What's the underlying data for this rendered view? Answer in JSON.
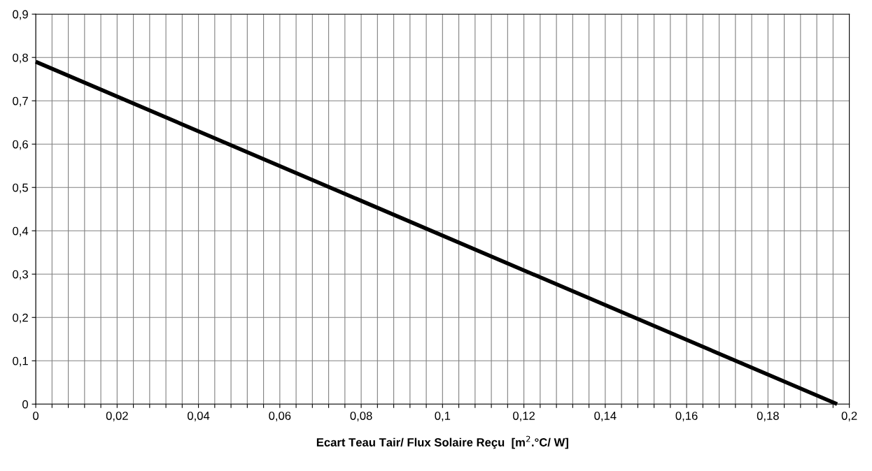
{
  "chart_data": {
    "type": "line",
    "xlabel": "Ecart Teau Tair/ Flux Solaire Reçu  [m$^{2}$.°C/ W]",
    "series": [
      {
        "color": "#000000",
        "x": [
          0,
          0.197
        ],
        "values": [
          0.79,
          0
        ]
      }
    ],
    "xlim": [
      0,
      0.2
    ],
    "ylim": [
      0,
      0.9
    ],
    "xticks": [
      0,
      {
        "value": 0.004,
        "label": null
      },
      {
        "value": 0.008,
        "label": null
      },
      {
        "value": 0.012,
        "label": null
      },
      {
        "value": 0.016,
        "label": null
      },
      {
        "value": 0.02,
        "label": "0,02"
      },
      {
        "value": 0.024,
        "label": null
      },
      {
        "value": 0.028,
        "label": null
      },
      {
        "value": 0.032,
        "label": null
      },
      {
        "value": 0.036,
        "label": null
      },
      {
        "value": 0.04,
        "label": "0,04"
      },
      {
        "value": 0.044,
        "label": null
      },
      {
        "value": 0.048,
        "label": null
      },
      {
        "value": 0.052,
        "label": null
      },
      {
        "value": 0.056,
        "label": null
      },
      {
        "value": 0.06,
        "label": "0,06"
      },
      {
        "value": 0.064,
        "label": null
      },
      {
        "value": 0.068,
        "label": null
      },
      {
        "value": 0.072,
        "label": null
      },
      {
        "value": 0.076,
        "label": null
      },
      {
        "value": 0.08,
        "label": "0,08"
      },
      {
        "value": 0.084,
        "label": null
      },
      {
        "value": 0.088,
        "label": null
      },
      {
        "value": 0.092,
        "label": null
      },
      {
        "value": 0.096,
        "label": null
      },
      {
        "value": 0.1,
        "label": "0,1"
      },
      {
        "value": 0.104,
        "label": null
      },
      {
        "value": 0.108,
        "label": null
      },
      {
        "value": 0.112,
        "label": null
      },
      {
        "value": 0.116,
        "label": null
      },
      {
        "value": 0.12,
        "label": "0,12"
      },
      {
        "value": 0.124,
        "label": null
      },
      {
        "value": 0.128,
        "label": null
      },
      {
        "value": 0.132,
        "label": null
      },
      {
        "value": 0.136,
        "label": null
      },
      {
        "value": 0.14,
        "label": "0,14"
      },
      {
        "value": 0.144,
        "label": null
      },
      {
        "value": 0.148,
        "label": null
      },
      {
        "value": 0.152,
        "label": null
      },
      {
        "value": 0.156,
        "label": null
      },
      {
        "value": 0.16,
        "label": "0,16"
      },
      {
        "value": 0.164,
        "label": null
      },
      {
        "value": 0.168,
        "label": null
      },
      {
        "value": 0.172,
        "label": null
      },
      {
        "value": 0.176,
        "label": null
      },
      {
        "value": 0.18,
        "label": "0,18"
      },
      {
        "value": 0.184,
        "label": null
      },
      {
        "value": 0.188,
        "label": null
      },
      {
        "value": 0.192,
        "label": null
      },
      {
        "value": 0.196,
        "label": null
      },
      {
        "value": 0.2,
        "label": "0,2"
      }
    ],
    "yticks": [
      0,
      {
        "value": 0.1,
        "label": "0,1"
      },
      {
        "value": 0.2,
        "label": "0,2"
      },
      {
        "value": 0.3,
        "label": "0,3"
      },
      {
        "value": 0.4,
        "label": "0,4"
      },
      {
        "value": 0.5,
        "label": "0,5"
      },
      {
        "value": 0.6,
        "label": "0,6"
      },
      {
        "value": 0.7,
        "label": "0,7"
      },
      {
        "value": 0.8,
        "label": "0,8"
      },
      {
        "value": 0.9,
        "label": "0,9"
      }
    ],
    "grid": true,
    "marker": "none",
    "line_style": "solid"
  }
}
